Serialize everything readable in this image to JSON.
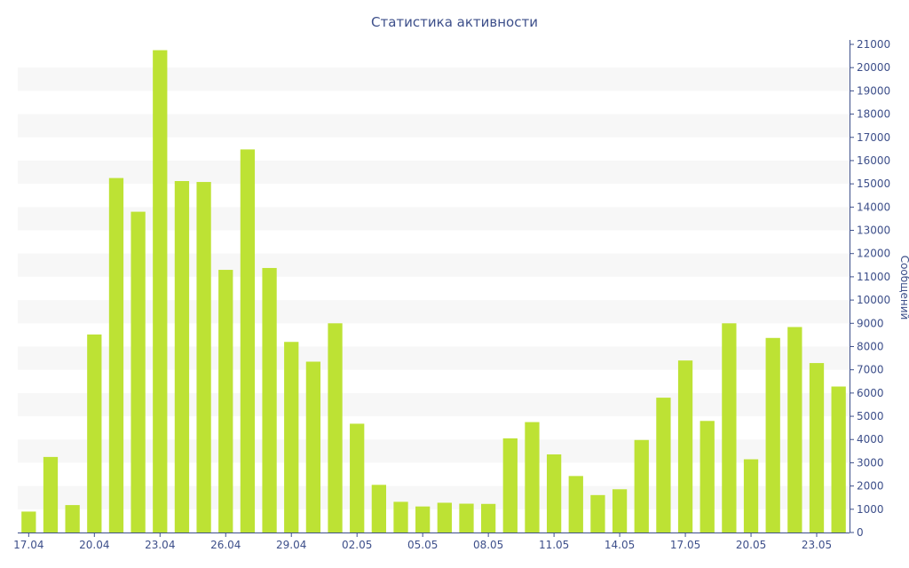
{
  "chart_data": {
    "type": "bar",
    "title": "Статистика активности",
    "xlabel": "",
    "ylabel": "Сообщений",
    "ylim": [
      0,
      21000
    ],
    "y_ticks": [
      0,
      1000,
      2000,
      3000,
      4000,
      5000,
      6000,
      7000,
      8000,
      9000,
      10000,
      11000,
      12000,
      13000,
      14000,
      15000,
      16000,
      17000,
      18000,
      19000,
      20000,
      21000
    ],
    "y_axis_side": "right",
    "bar_color": "#bde234",
    "band_color": "#f7f7f7",
    "axis_color": "#3d4f8a",
    "grid": "alternating horizontal bands",
    "x_tick_labels": [
      "17.04",
      "20.04",
      "23.04",
      "26.04",
      "29.04",
      "02.05",
      "05.05",
      "08.05",
      "11.05",
      "14.05",
      "17.05",
      "20.05",
      "23.05"
    ],
    "categories": [
      "17.04",
      "18.04",
      "19.04",
      "20.04",
      "21.04",
      "22.04",
      "23.04",
      "24.04",
      "25.04",
      "26.04",
      "27.04",
      "28.04",
      "29.04",
      "30.04",
      "01.05",
      "02.05",
      "03.05",
      "04.05",
      "05.05",
      "06.05",
      "07.05",
      "08.05",
      "09.05",
      "10.05",
      "11.05",
      "12.05",
      "13.05",
      "14.05",
      "15.05",
      "16.05",
      "17.05",
      "18.05",
      "19.05",
      "20.05",
      "21.05",
      "22.05",
      "23.05",
      "24.05"
    ],
    "values": [
      900,
      3250,
      1180,
      8520,
      15250,
      13800,
      20750,
      15120,
      15080,
      11300,
      16480,
      11380,
      8200,
      7350,
      9000,
      4680,
      2050,
      1320,
      1120,
      1280,
      1240,
      1230,
      4050,
      4750,
      3360,
      2430,
      1610,
      1860,
      3980,
      5800,
      7400,
      4800,
      9000,
      3150,
      8370,
      8840,
      7290,
      6280
    ]
  }
}
